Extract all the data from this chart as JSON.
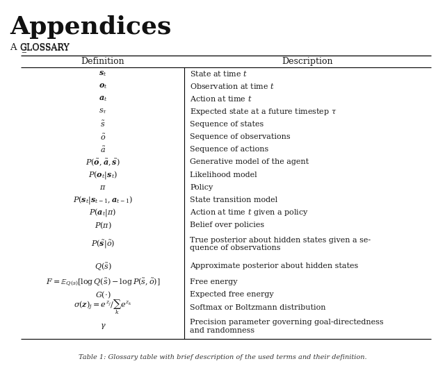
{
  "title": "Appendices",
  "section": "A    Glossary",
  "col1_header": "Definition",
  "col2_header": "Description",
  "rows": [
    [
      "$\\boldsymbol{s}_t$",
      "State at time $t$"
    ],
    [
      "$\\boldsymbol{o}_t$",
      "Observation at time $t$"
    ],
    [
      "$\\boldsymbol{a}_t$",
      "Action at time $t$"
    ],
    [
      "$s_\\tau$",
      "Expected state at a future timestep $\\tau$"
    ],
    [
      "$\\tilde{s}$",
      "Sequence of states"
    ],
    [
      "$\\tilde{o}$",
      "Sequence of observations"
    ],
    [
      "$\\tilde{a}$",
      "Sequence of actions"
    ],
    [
      "$P(\\tilde{\\boldsymbol{o}}, \\tilde{\\boldsymbol{a}}, \\tilde{\\boldsymbol{s}})$",
      "Generative model of the agent"
    ],
    [
      "$P(\\boldsymbol{o}_t|\\boldsymbol{s}_t)$",
      "Likelihood model"
    ],
    [
      "$\\pi$",
      "Policy"
    ],
    [
      "$P(\\boldsymbol{s}_t|\\boldsymbol{s}_{t-1}, \\boldsymbol{a}_{t-1})$",
      "State transition model"
    ],
    [
      "$P(\\boldsymbol{a}_t|\\pi)$",
      "Action at time $t$ given a policy"
    ],
    [
      "$P(\\pi)$",
      "Belief over policies"
    ],
    [
      "$P(\\tilde{\\boldsymbol{s}}|\\tilde{o})$",
      "True posterior about hidden states given a se-\nquence of observations"
    ],
    [
      "$Q(\\tilde{s})$",
      "Approximate posterior about hidden states"
    ],
    [
      "$F = \\mathbb{E}_{Q(s)}[\\log Q(\\tilde{s}) - \\log P(\\tilde{s}, \\tilde{o})]$",
      "Free energy"
    ],
    [
      "$G(\\cdot)$",
      "Expected free energy"
    ],
    [
      "$\\sigma(\\boldsymbol{z})_j = e^{z_j}/\\sum_k e^{z_k}$",
      "Softmax or Boltzmann distribution"
    ],
    [
      "$\\gamma$",
      "Precision parameter governing goal-directedness\nand randomness"
    ]
  ],
  "footer": "Table 1: Glossary table with brief description of the used terms and their definition.",
  "bg_color": "#ffffff",
  "text_color": "#1a1a1a",
  "row_heights": [
    1,
    1,
    1,
    1,
    1,
    1,
    1,
    1,
    1,
    1,
    1,
    1,
    1,
    2,
    1.5,
    1,
    1,
    1,
    2
  ]
}
